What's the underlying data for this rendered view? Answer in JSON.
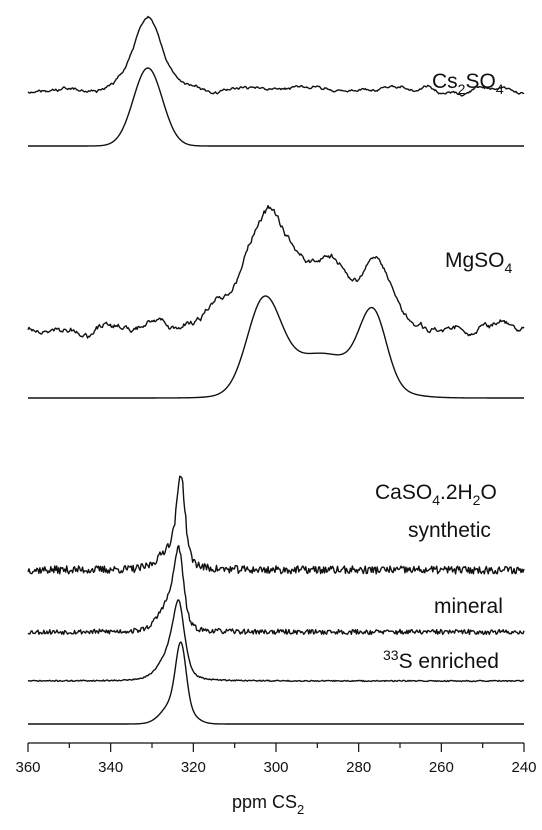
{
  "chart_data": {
    "type": "line",
    "title": "",
    "xlabel": "ppm CS",
    "xlabel_sub": "2",
    "xlim": [
      360,
      240
    ],
    "x_reversed": true,
    "x_ticks": [
      360,
      340,
      320,
      300,
      280,
      260,
      240
    ],
    "grid": false,
    "legend": "none",
    "y_axis": "none",
    "labels": {
      "cs2so4": {
        "pre": "Cs",
        "sub1": "2",
        "mid": "SO",
        "sub2": "4"
      },
      "mgso4": {
        "pre": "MgSO",
        "sub1": "4"
      },
      "caso4": {
        "pre": "CaSO",
        "sub1": "4",
        "mid": ".2H",
        "sub2": "2",
        "post": "O"
      },
      "synthetic": "synthetic",
      "mineral": "mineral",
      "enriched": {
        "sup": "33",
        "text": "S enriched"
      }
    },
    "traces": [
      {
        "id": "cs2so4-exp",
        "kind": "experimental",
        "noise": 5,
        "seed": 11,
        "smooth": 7,
        "peaks": [
          {
            "center": 331,
            "height": 1.0,
            "width": 3.5
          }
        ]
      },
      {
        "id": "cs2so4-sim",
        "kind": "simulated",
        "peaks": [
          {
            "center": 331,
            "height": 1.0,
            "width": 3.5
          }
        ]
      },
      {
        "id": "mgso4-exp",
        "kind": "experimental",
        "noise": 10,
        "seed": 23,
        "smooth": 8,
        "peaks": [
          {
            "center": 302,
            "height": 1.0,
            "width": 7
          },
          {
            "center": 287,
            "height": 0.45,
            "width": 5
          },
          {
            "center": 276,
            "height": 0.55,
            "width": 4
          }
        ]
      },
      {
        "id": "mgso4-sim",
        "kind": "simulated",
        "peaks": [
          {
            "center": 303,
            "height": 0.95,
            "width": 4
          },
          {
            "center": 289,
            "height": 0.5,
            "width": 10
          },
          {
            "center": 276.5,
            "height": 0.78,
            "width": 3.2
          }
        ]
      },
      {
        "id": "caso4-synthetic",
        "kind": "experimental",
        "noise": 4,
        "seed": 37,
        "smooth": 1,
        "peaks": [
          {
            "center": 323,
            "height": 1.0,
            "width": 1.0
          },
          {
            "center": 325,
            "height": 0.3,
            "width": 3
          }
        ]
      },
      {
        "id": "caso4-mineral",
        "kind": "experimental",
        "noise": 2.5,
        "seed": 53,
        "smooth": 1,
        "peaks": [
          {
            "center": 323.5,
            "height": 1.0,
            "width": 1.2
          },
          {
            "center": 326,
            "height": 0.4,
            "width": 2.5
          }
        ]
      },
      {
        "id": "caso4-enriched",
        "kind": "experimental",
        "noise": 0.6,
        "seed": 71,
        "smooth": 1,
        "peaks": [
          {
            "center": 323.5,
            "height": 1.0,
            "width": 1.4
          },
          {
            "center": 325.5,
            "height": 0.45,
            "width": 2.8
          }
        ]
      },
      {
        "id": "caso4-sim",
        "kind": "simulated",
        "peaks": [
          {
            "center": 323,
            "height": 1.0,
            "width": 1.2
          },
          {
            "center": 324,
            "height": 0.45,
            "width": 3
          }
        ]
      }
    ]
  }
}
